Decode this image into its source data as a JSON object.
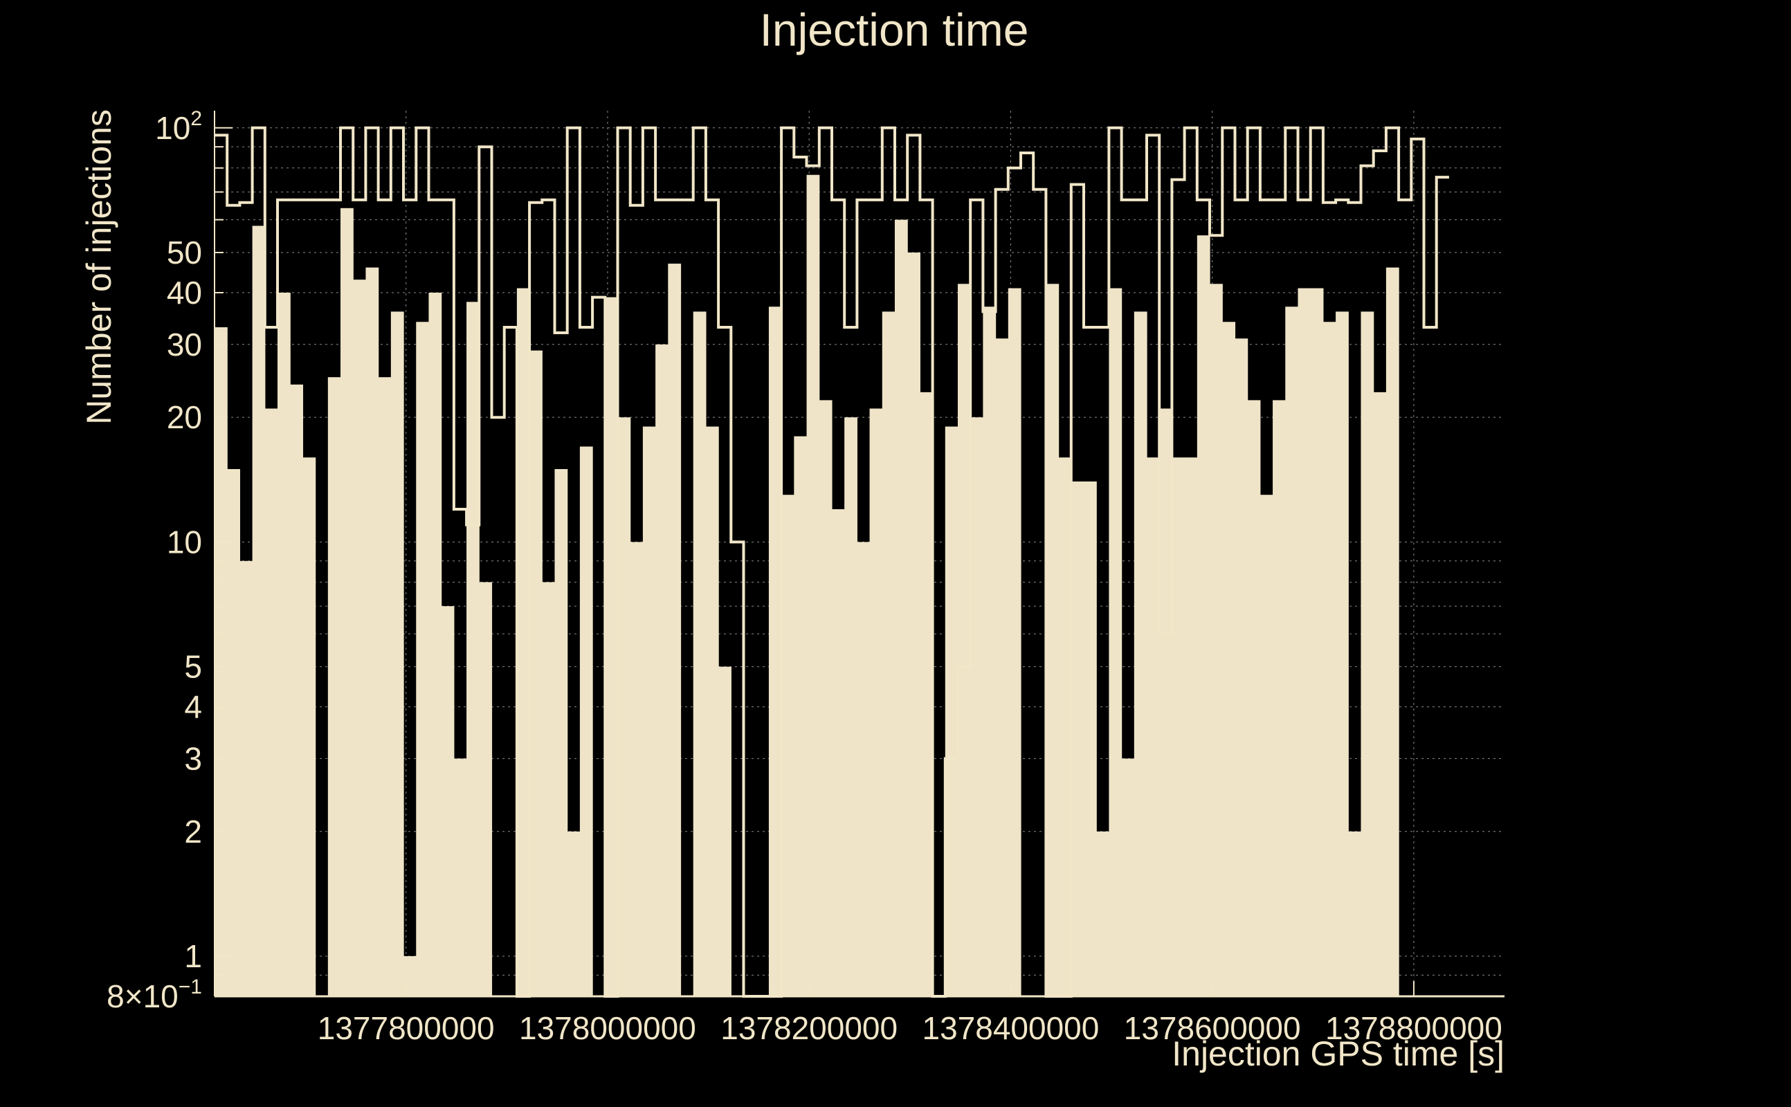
{
  "colors": {
    "background": "#000000",
    "fill": "#efe4c8",
    "line": "#f1e6c8",
    "grid": "#8c8c8c"
  },
  "chart_data": {
    "type": "histogram",
    "title": "Injection time",
    "xlabel": "Injection GPS time [s]",
    "ylabel": "Number of injections",
    "y_scale": "log",
    "ylim": [
      0.8,
      110
    ],
    "xlim": [
      1377610000,
      1378890000
    ],
    "grid": true,
    "x_ticks": [
      {
        "value": 1377800000,
        "label": "1377800000"
      },
      {
        "value": 1378000000,
        "label": "1378000000"
      },
      {
        "value": 1378200000,
        "label": "1378200000"
      },
      {
        "value": 1378400000,
        "label": "1378400000"
      },
      {
        "value": 1378600000,
        "label": "1378600000"
      },
      {
        "value": 1378800000,
        "label": "1378800000"
      }
    ],
    "y_ticks": [
      {
        "value": 100,
        "label": "10",
        "sup": "2"
      },
      {
        "value": 50,
        "label": "50"
      },
      {
        "value": 40,
        "label": "40"
      },
      {
        "value": 30,
        "label": "30"
      },
      {
        "value": 20,
        "label": "20"
      },
      {
        "value": 10,
        "label": "10"
      },
      {
        "value": 5,
        "label": "5"
      },
      {
        "value": 4,
        "label": "4"
      },
      {
        "value": 3,
        "label": "3"
      },
      {
        "value": 2,
        "label": "2"
      },
      {
        "value": 1,
        "label": "1"
      },
      {
        "value": 0.8,
        "label": "8×10",
        "sup": "−1"
      }
    ],
    "bin_width": 12500,
    "bin_start": 1377610000,
    "series": [
      {
        "style": "filled",
        "values": [
          33,
          15,
          9,
          58,
          21,
          40,
          24,
          16,
          0.8,
          25,
          64,
          43,
          46,
          25,
          36,
          1,
          34,
          40,
          7,
          3,
          38,
          8,
          0.8,
          0.8,
          41,
          29,
          8,
          15,
          2,
          17,
          0.8,
          39,
          20,
          10,
          19,
          30,
          47,
          0.8,
          36,
          19,
          5,
          0.8,
          0.8,
          0.8,
          37,
          13,
          18,
          77,
          22,
          12,
          20,
          10,
          21,
          36,
          60,
          50,
          23,
          0.8,
          19,
          42,
          20,
          37,
          31,
          41,
          0.8,
          0.8,
          42,
          16,
          14,
          14,
          2,
          41,
          3,
          36,
          16,
          21,
          16,
          16,
          55,
          42,
          34,
          31,
          22,
          13,
          22,
          37,
          41,
          41,
          34,
          36,
          2,
          36,
          23,
          46
        ]
      },
      {
        "style": "step",
        "values": [
          96,
          65,
          66,
          100,
          33,
          67,
          67,
          67,
          67,
          67,
          100,
          67,
          100,
          67,
          100,
          67,
          100,
          67,
          67,
          12,
          11,
          90,
          20,
          33,
          0.8,
          66,
          67,
          32,
          100,
          33,
          39,
          0.8,
          100,
          65,
          100,
          67,
          67,
          67,
          100,
          67,
          33,
          10,
          0.8,
          0.8,
          0.8,
          100,
          85,
          81,
          100,
          67,
          33,
          67,
          67,
          100,
          67,
          96,
          67,
          0.8,
          3,
          5,
          67,
          36,
          71,
          80,
          87,
          71,
          0.8,
          0.8,
          73,
          33,
          33,
          100,
          67,
          67,
          96,
          6,
          75,
          100,
          67,
          55,
          100,
          67,
          100,
          67,
          67,
          100,
          67,
          100,
          66,
          67,
          66,
          81,
          88,
          100,
          67,
          94,
          33,
          76
        ]
      }
    ]
  }
}
